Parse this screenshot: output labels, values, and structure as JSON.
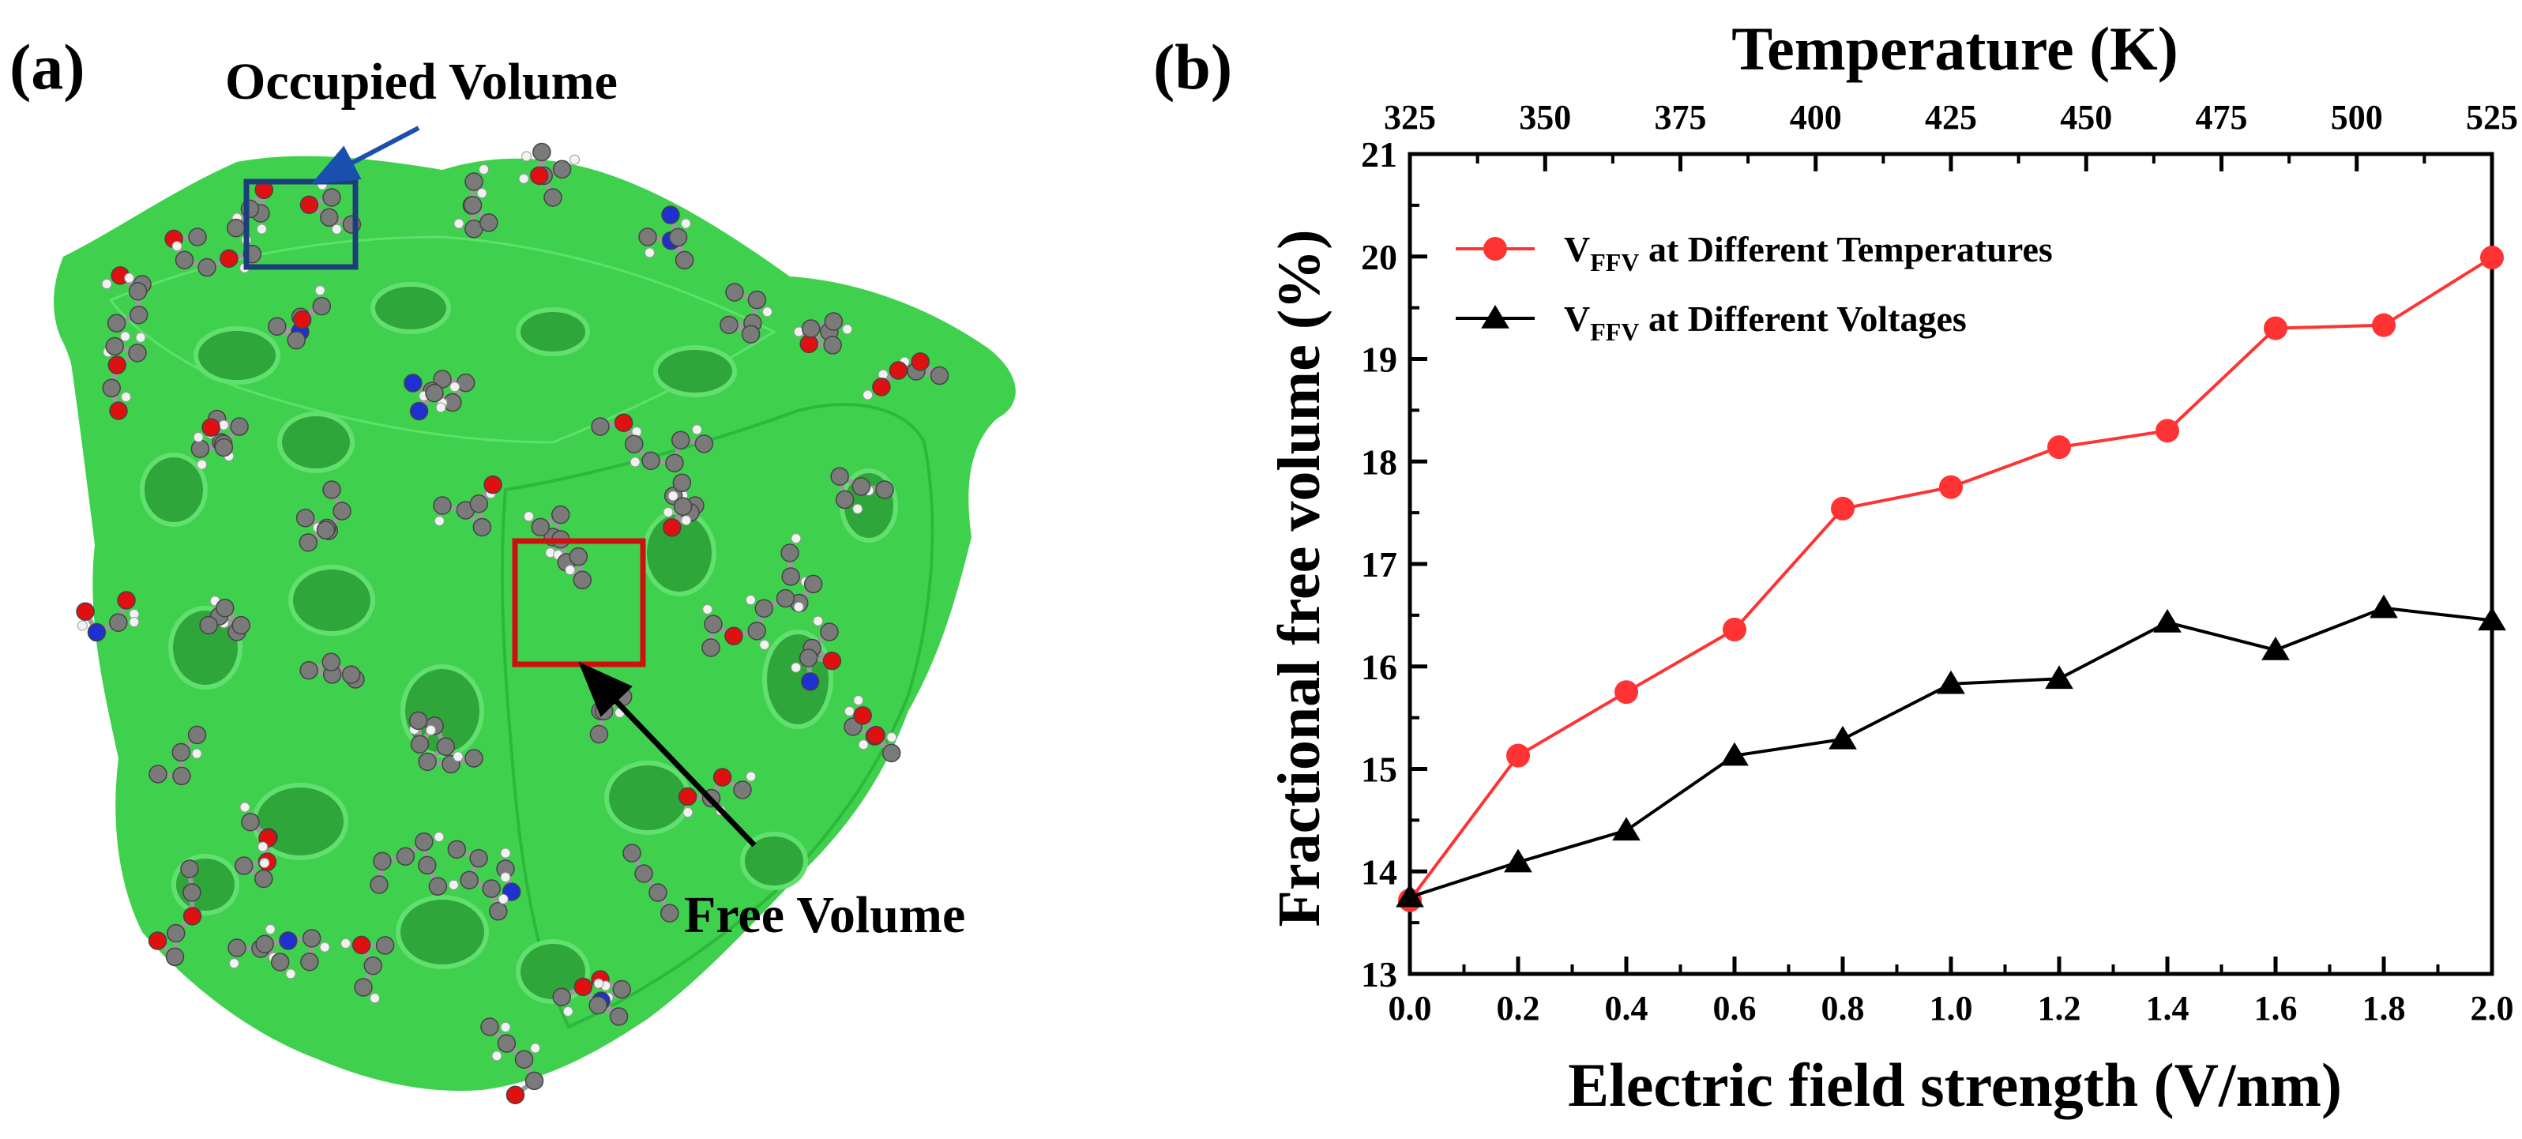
{
  "panel_a": {
    "label": "(a)",
    "occupied_label": "Occupied Volume",
    "free_label": "Free Volume",
    "colors": {
      "free_volume": "#3fd14e",
      "carbon": "#7a7a7a",
      "oxygen": "#e01010",
      "nitrogen": "#2030d0",
      "hydrogen": "#f2f2f2",
      "occupied_box": "#1c3f7a",
      "occupied_arrow": "#1a4fb0",
      "free_box": "#d01010",
      "free_arrow": "#000000"
    }
  },
  "panel_b": {
    "label": "(b)"
  },
  "chart_data": {
    "type": "line",
    "title": "",
    "xlabel": "Electric field strength (V/nm)",
    "ylabel": "Fractional free volume (%)",
    "top_xlabel": "Temperature (K)",
    "xlim": [
      0.0,
      2.0
    ],
    "ylim": [
      13,
      21
    ],
    "top_xlim": [
      325,
      525
    ],
    "x_ticks": [
      "0.0",
      "0.2",
      "0.4",
      "0.6",
      "0.8",
      "1.0",
      "1.2",
      "1.4",
      "1.6",
      "1.8",
      "2.0"
    ],
    "y_ticks": [
      "13",
      "14",
      "15",
      "16",
      "17",
      "18",
      "19",
      "20",
      "21"
    ],
    "top_x_ticks": [
      "325",
      "350",
      "375",
      "400",
      "425",
      "450",
      "475",
      "500",
      "525"
    ],
    "x": [
      0.0,
      0.2,
      0.4,
      0.6,
      0.8,
      1.0,
      1.2,
      1.4,
      1.6,
      1.8,
      2.0
    ],
    "series": [
      {
        "name": "at Different Temperatures",
        "prefix": "V",
        "sub": "FFV",
        "marker": "circle",
        "color": "#ff3333",
        "values": [
          13.72,
          15.13,
          15.75,
          16.36,
          17.54,
          17.75,
          18.14,
          18.3,
          19.3,
          19.33,
          19.99
        ]
      },
      {
        "name": "at Different Voltages",
        "prefix": "V",
        "sub": "FFV",
        "marker": "triangle",
        "color": "#000000",
        "values": [
          13.75,
          14.09,
          14.4,
          15.13,
          15.29,
          15.83,
          15.88,
          16.43,
          16.16,
          16.57,
          16.45
        ]
      }
    ],
    "legend_position": "top-left"
  }
}
